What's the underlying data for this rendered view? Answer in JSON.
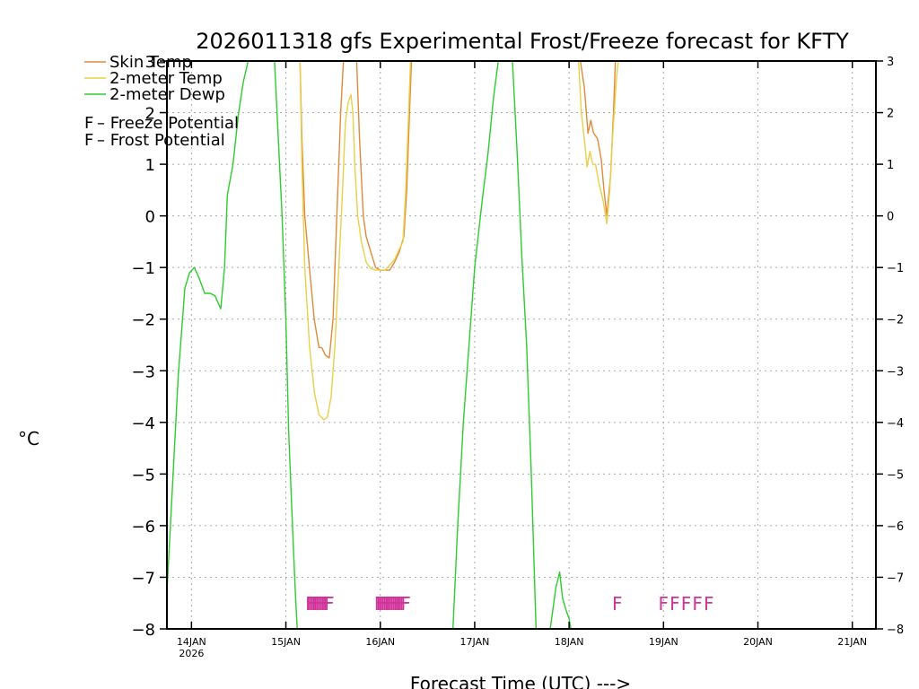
{
  "chart_data": {
    "type": "line",
    "title": "2026011318 gfs Experimental Frost/Freeze forecast for KFTY",
    "xlabel": "Forecast Time (UTC) --->",
    "ylabel": "°C",
    "ylim": [
      -8,
      3
    ],
    "xlim": [
      13.74,
      21.25
    ],
    "yticks": [
      -8,
      -7,
      -6,
      -5,
      -4,
      -3,
      -2,
      -1,
      0,
      1,
      2,
      3
    ],
    "xticks": [
      {
        "x": 14,
        "label": "14JAN",
        "sublabel": "2026"
      },
      {
        "x": 15,
        "label": "15JAN"
      },
      {
        "x": 16,
        "label": "16JAN"
      },
      {
        "x": 17,
        "label": "17JAN"
      },
      {
        "x": 18,
        "label": "18JAN"
      },
      {
        "x": 19,
        "label": "19JAN"
      },
      {
        "x": 20,
        "label": "20JAN"
      },
      {
        "x": 21,
        "label": "21JAN"
      }
    ],
    "grid": true,
    "series": [
      {
        "name": "Skin Temp",
        "color": "#e08a3a",
        "segments": [
          [
            [
              15.15,
              3
            ],
            [
              15.17,
              1.5
            ],
            [
              15.2,
              0.0
            ],
            [
              15.25,
              -1.0
            ],
            [
              15.3,
              -2.0
            ],
            [
              15.35,
              -2.55
            ],
            [
              15.38,
              -2.55
            ],
            [
              15.42,
              -2.7
            ],
            [
              15.46,
              -2.75
            ],
            [
              15.5,
              -2.0
            ],
            [
              15.54,
              0.0
            ],
            [
              15.58,
              2.0
            ],
            [
              15.61,
              3
            ]
          ],
          [
            [
              15.75,
              3
            ],
            [
              15.78,
              1.5
            ],
            [
              15.82,
              0.0
            ],
            [
              15.85,
              -0.4
            ],
            [
              15.9,
              -0.7
            ],
            [
              15.95,
              -1.0
            ],
            [
              16.0,
              -1.05
            ],
            [
              16.05,
              -1.05
            ],
            [
              16.1,
              -1.05
            ],
            [
              16.15,
              -0.9
            ],
            [
              16.2,
              -0.7
            ],
            [
              16.25,
              -0.4
            ],
            [
              16.28,
              0.5
            ],
            [
              16.31,
              2.0
            ],
            [
              16.33,
              3
            ]
          ],
          [
            [
              18.12,
              3
            ],
            [
              18.16,
              2.5
            ],
            [
              18.2,
              1.6
            ],
            [
              18.23,
              1.85
            ],
            [
              18.26,
              1.6
            ],
            [
              18.3,
              1.5
            ],
            [
              18.34,
              1.1
            ],
            [
              18.37,
              0.5
            ],
            [
              18.4,
              0.0
            ],
            [
              18.44,
              0.8
            ],
            [
              18.47,
              2.0
            ],
            [
              18.49,
              3
            ]
          ]
        ]
      },
      {
        "name": "2-meter Temp",
        "color": "#e8d04a",
        "segments": [
          [
            [
              15.15,
              3
            ],
            [
              15.17,
              1.0
            ],
            [
              15.2,
              -1.0
            ],
            [
              15.25,
              -2.5
            ],
            [
              15.3,
              -3.4
            ],
            [
              15.35,
              -3.85
            ],
            [
              15.4,
              -3.95
            ],
            [
              15.44,
              -3.9
            ],
            [
              15.48,
              -3.5
            ],
            [
              15.52,
              -2.5
            ],
            [
              15.56,
              -1.0
            ],
            [
              15.6,
              0.5
            ],
            [
              15.63,
              1.8
            ],
            [
              15.66,
              2.2
            ],
            [
              15.69,
              2.35
            ],
            [
              15.71,
              2.0
            ],
            [
              15.73,
              1.0
            ],
            [
              15.76,
              0.0
            ],
            [
              15.8,
              -0.5
            ],
            [
              15.85,
              -0.9
            ],
            [
              15.9,
              -1.02
            ],
            [
              15.95,
              -1.05
            ],
            [
              16.0,
              -1.05
            ],
            [
              16.05,
              -1.05
            ],
            [
              16.1,
              -0.95
            ],
            [
              16.15,
              -0.85
            ],
            [
              16.2,
              -0.65
            ],
            [
              16.24,
              -0.5
            ],
            [
              16.27,
              0.5
            ],
            [
              16.3,
              2.0
            ],
            [
              16.32,
              3
            ]
          ],
          [
            [
              18.1,
              3
            ],
            [
              18.13,
              2.0
            ],
            [
              18.16,
              1.5
            ],
            [
              18.19,
              0.95
            ],
            [
              18.22,
              1.25
            ],
            [
              18.25,
              1.0
            ],
            [
              18.28,
              1.0
            ],
            [
              18.32,
              0.6
            ],
            [
              18.36,
              0.3
            ],
            [
              18.4,
              -0.15
            ],
            [
              18.43,
              0.5
            ],
            [
              18.46,
              1.5
            ],
            [
              18.5,
              2.6
            ],
            [
              18.52,
              3
            ]
          ]
        ]
      },
      {
        "name": "2-meter Dewp",
        "color": "#2ecc2e",
        "segments": [
          [
            [
              13.74,
              -7.3
            ],
            [
              13.8,
              -5.2
            ],
            [
              13.86,
              -3.1
            ],
            [
              13.93,
              -1.4
            ],
            [
              13.98,
              -1.1
            ],
            [
              14.03,
              -1.0
            ],
            [
              14.08,
              -1.2
            ],
            [
              14.14,
              -1.5
            ],
            [
              14.2,
              -1.5
            ],
            [
              14.25,
              -1.55
            ],
            [
              14.31,
              -1.8
            ],
            [
              14.35,
              -1.0
            ],
            [
              14.38,
              0.4
            ],
            [
              14.44,
              1.0
            ],
            [
              14.5,
              2.0
            ],
            [
              14.55,
              2.6
            ],
            [
              14.6,
              3
            ]
          ],
          [
            [
              14.88,
              3
            ],
            [
              14.92,
              1.5
            ],
            [
              14.96,
              0.0
            ],
            [
              15.0,
              -2.0
            ],
            [
              15.03,
              -4.2
            ],
            [
              15.07,
              -6.0
            ],
            [
              15.1,
              -7.3
            ],
            [
              15.12,
              -8
            ]
          ],
          [
            [
              16.77,
              -8
            ],
            [
              16.82,
              -6.0
            ],
            [
              16.88,
              -4.0
            ],
            [
              16.94,
              -2.5
            ],
            [
              17.0,
              -1.0
            ],
            [
              17.08,
              0.3
            ],
            [
              17.14,
              1.2
            ],
            [
              17.2,
              2.3
            ],
            [
              17.25,
              3
            ]
          ],
          [
            [
              17.4,
              3
            ],
            [
              17.45,
              1.2
            ],
            [
              17.5,
              -0.8
            ],
            [
              17.55,
              -2.5
            ],
            [
              17.6,
              -5.0
            ],
            [
              17.65,
              -8
            ]
          ],
          [
            [
              17.8,
              -8
            ],
            [
              17.86,
              -7.2
            ],
            [
              17.9,
              -6.9
            ],
            [
              17.93,
              -7.4
            ],
            [
              17.97,
              -7.65
            ],
            [
              18.0,
              -7.8
            ],
            [
              18.02,
              -8
            ]
          ]
        ]
      }
    ],
    "legend": {
      "placement": "top-left",
      "entries": [
        {
          "name": "Skin Temp",
          "color": "#e08a3a"
        },
        {
          "name": "2-meter Temp",
          "color": "#e8d04a"
        },
        {
          "name": "2-meter Dewp",
          "color": "#2ecc2e"
        }
      ],
      "potential_entries": [
        {
          "letter": "F",
          "text": " – Freeze Potential",
          "color": "#d0349a"
        },
        {
          "letter": "F",
          "text": " – Frost Potential",
          "color": "#4a5ee0"
        }
      ]
    },
    "freeze_markers": {
      "label": "F",
      "y": -7.5,
      "color": "#d0349a",
      "x": [
        15.26,
        15.28,
        15.3,
        15.32,
        15.34,
        15.36,
        15.38,
        15.4,
        15.42,
        15.44,
        15.46,
        15.99,
        16.01,
        16.03,
        16.05,
        16.07,
        16.09,
        16.11,
        16.13,
        16.15,
        16.17,
        16.19,
        16.21,
        16.23,
        16.25,
        16.27,
        18.51,
        19.0,
        19.12,
        19.24,
        19.36,
        19.48
      ]
    }
  }
}
